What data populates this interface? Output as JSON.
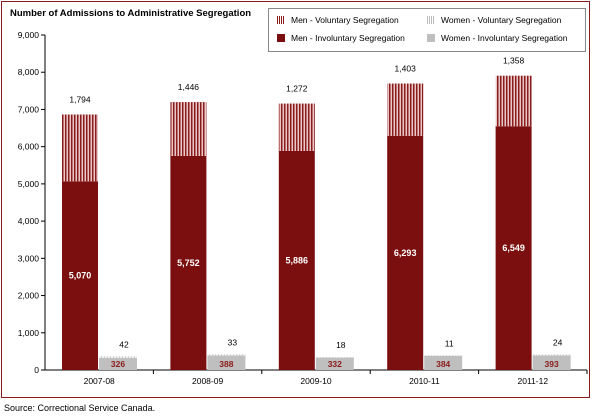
{
  "chart_data": {
    "type": "bar",
    "title": "Number of Admissions to Administrative Segregation",
    "categories": [
      "2007-08",
      "2008-09",
      "2009-10",
      "2010-11",
      "2011-12"
    ],
    "ylim": [
      0,
      9000
    ],
    "yticks": [
      "0",
      "1,000",
      "2,000",
      "3,000",
      "4,000",
      "5,000",
      "6,000",
      "7,000",
      "8,000",
      "9,000"
    ],
    "ytick_values": [
      0,
      1000,
      2000,
      3000,
      4000,
      5000,
      6000,
      7000,
      8000,
      9000
    ],
    "stacked": true,
    "groups": [
      {
        "name": "men",
        "series": [
          {
            "name": "Men - Involuntary Segregation",
            "values": [
              5070,
              5752,
              5886,
              6293,
              6549
            ],
            "labels": [
              "5,070",
              "5,752",
              "5,886",
              "6,293",
              "6,549"
            ],
            "color": "#7b0f0f"
          },
          {
            "name": "Men - Voluntary Segregation",
            "values": [
              1794,
              1446,
              1272,
              1403,
              1358
            ],
            "labels": [
              "1,794",
              "1,446",
              "1,272",
              "1,403",
              "1,358"
            ],
            "color": "#c97b7b"
          }
        ]
      },
      {
        "name": "women",
        "series": [
          {
            "name": "Women - Involuntary Segregation",
            "values": [
              326,
              388,
              332,
              384,
              393
            ],
            "labels": [
              "326",
              "388",
              "332",
              "384",
              "393"
            ],
            "color": "#bfbfbf"
          },
          {
            "name": "Women - Voluntary Segregation",
            "values": [
              42,
              33,
              18,
              11,
              24
            ],
            "labels": [
              "42",
              "33",
              "18",
              "11",
              "24"
            ],
            "color": "#d9d9d9"
          }
        ]
      }
    ],
    "legend": {
      "placement": "top-right",
      "items": [
        "Men - Voluntary Segregation",
        "Women - Voluntary Segregation",
        "Men - Involuntary Segregation",
        "Women - Involuntary Segregation"
      ]
    },
    "source": "Source:  Correctional Service Canada."
  }
}
